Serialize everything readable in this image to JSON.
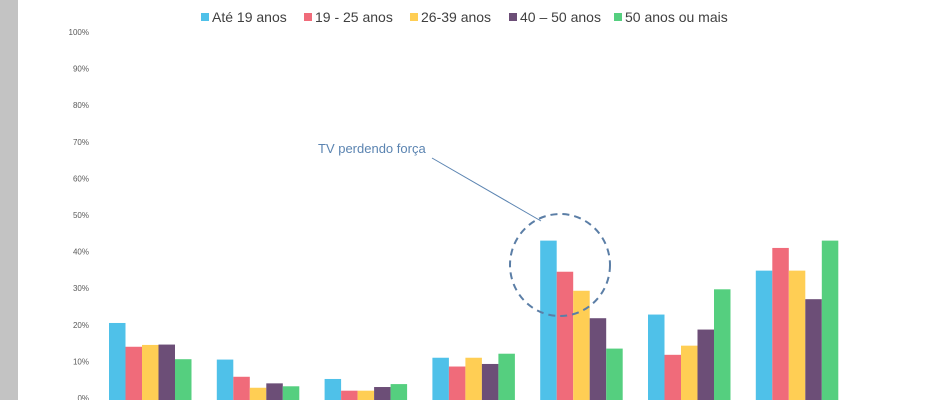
{
  "chart_data": {
    "type": "bar",
    "categories": [
      "",
      "",
      "",
      "",
      "",
      "",
      ""
    ],
    "series": [
      {
        "name": "Até 19 anos",
        "color": "#4fc1e9",
        "values": [
          20.5,
          10.5,
          5.2,
          11.0,
          43.0,
          22.8,
          34.8
        ]
      },
      {
        "name": "19 - 25 anos",
        "color": "#f06b7a",
        "values": [
          14.0,
          5.8,
          2.0,
          8.6,
          34.5,
          11.8,
          41.0
        ]
      },
      {
        "name": "26-39 anos",
        "color": "#ffce54",
        "values": [
          14.5,
          2.8,
          2.0,
          11.0,
          29.3,
          14.3,
          34.8
        ]
      },
      {
        "name": "40 – 50 anos",
        "color": "#6c4e77",
        "values": [
          14.6,
          4.0,
          3.0,
          9.3,
          21.8,
          18.7,
          27.0
        ]
      },
      {
        "name": "50 anos ou mais",
        "color": "#55cf7f",
        "values": [
          10.6,
          3.2,
          3.8,
          12.1,
          13.5,
          29.7,
          43.0
        ]
      }
    ],
    "ylim": [
      0,
      100
    ],
    "yticks": [
      "0%",
      "10%",
      "20%",
      "30%",
      "40%",
      "50%",
      "60%",
      "70%",
      "80%",
      "90%",
      "100%"
    ],
    "legend_position": "top",
    "annotation": {
      "text": "TV perdendo força",
      "target_category_index": 4
    }
  }
}
